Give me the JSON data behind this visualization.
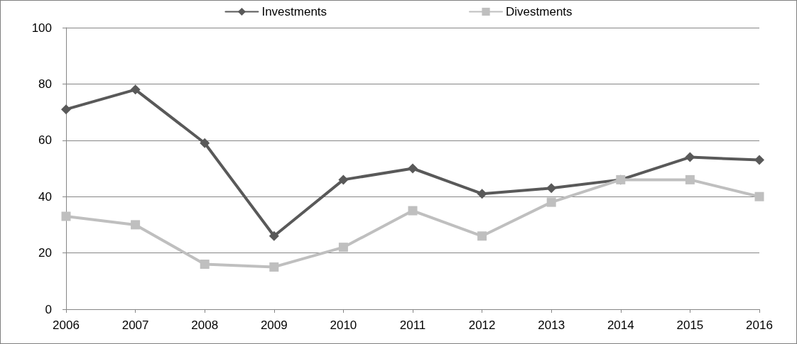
{
  "chart_data": {
    "type": "line",
    "categories": [
      "2006",
      "2007",
      "2008",
      "2009",
      "2010",
      "2011",
      "2012",
      "2013",
      "2014",
      "2015",
      "2016"
    ],
    "series": [
      {
        "name": "Investments",
        "color": "#595959",
        "marker": "diamond",
        "values": [
          71,
          78,
          59,
          26,
          46,
          50,
          41,
          43,
          46,
          54,
          53
        ]
      },
      {
        "name": "Divestments",
        "color": "#bfbfbf",
        "marker": "square",
        "values": [
          33,
          30,
          16,
          15,
          22,
          35,
          26,
          38,
          46,
          46,
          40
        ]
      }
    ],
    "ylim": [
      0,
      100
    ],
    "yticks": [
      0,
      20,
      40,
      60,
      80,
      100
    ],
    "grid": "y",
    "legend": "top",
    "line_style": "solid"
  }
}
